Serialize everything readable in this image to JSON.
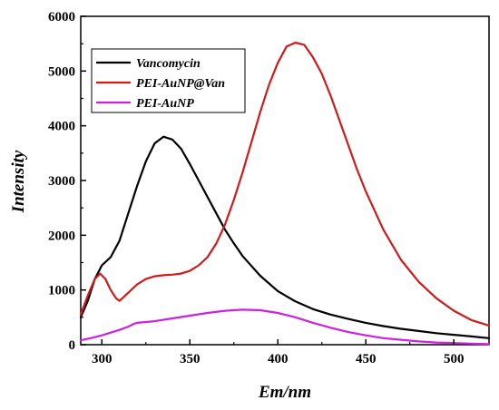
{
  "chart_data": {
    "type": "line",
    "title": "",
    "xlabel": "Em/nm",
    "ylabel": "Intensity",
    "xlim": [
      288,
      520
    ],
    "ylim": [
      0,
      6000
    ],
    "x_ticks": [
      300,
      350,
      400,
      450,
      500
    ],
    "y_ticks": [
      0,
      1000,
      2000,
      3000,
      4000,
      5000,
      6000
    ],
    "grid": false,
    "legend_position": "top-left",
    "series": [
      {
        "name": "Vancomycin",
        "color": "#000000",
        "x": [
          288,
          292,
          296,
          300,
          305,
          310,
          315,
          320,
          325,
          330,
          335,
          340,
          345,
          350,
          355,
          360,
          365,
          370,
          375,
          380,
          390,
          400,
          410,
          420,
          430,
          440,
          450,
          460,
          470,
          480,
          490,
          500,
          510,
          520
        ],
        "y": [
          500,
          800,
          1200,
          1450,
          1600,
          1900,
          2400,
          2900,
          3350,
          3680,
          3800,
          3750,
          3580,
          3300,
          3000,
          2700,
          2400,
          2100,
          1850,
          1620,
          1260,
          980,
          790,
          650,
          550,
          470,
          400,
          340,
          290,
          250,
          210,
          180,
          150,
          120
        ]
      },
      {
        "name": "PEI-AuNP@Van",
        "color": "#d11a1a",
        "x": [
          288,
          292,
          296,
          299,
          302,
          305,
          308,
          310,
          315,
          320,
          325,
          330,
          335,
          340,
          345,
          350,
          355,
          360,
          365,
          370,
          375,
          380,
          385,
          390,
          395,
          400,
          405,
          410,
          415,
          420,
          425,
          430,
          435,
          440,
          445,
          450,
          460,
          470,
          480,
          490,
          500,
          510,
          520
        ],
        "y": [
          550,
          900,
          1200,
          1300,
          1200,
          1000,
          850,
          800,
          950,
          1100,
          1200,
          1250,
          1270,
          1280,
          1300,
          1350,
          1450,
          1600,
          1850,
          2200,
          2650,
          3150,
          3700,
          4250,
          4750,
          5150,
          5450,
          5520,
          5480,
          5250,
          4950,
          4550,
          4100,
          3650,
          3200,
          2800,
          2100,
          1550,
          1150,
          850,
          620,
          450,
          350
        ]
      },
      {
        "name": "PEI-AuNP",
        "color": "#cc22dd",
        "x": [
          288,
          295,
          300,
          305,
          310,
          315,
          318,
          320,
          330,
          340,
          350,
          360,
          370,
          380,
          390,
          400,
          410,
          420,
          430,
          440,
          450,
          460,
          470,
          480,
          490,
          500,
          510,
          520
        ],
        "y": [
          80,
          130,
          170,
          220,
          270,
          330,
          380,
          400,
          430,
          480,
          530,
          580,
          620,
          640,
          630,
          580,
          500,
          400,
          310,
          230,
          170,
          120,
          90,
          60,
          40,
          30,
          20,
          10
        ]
      }
    ]
  }
}
